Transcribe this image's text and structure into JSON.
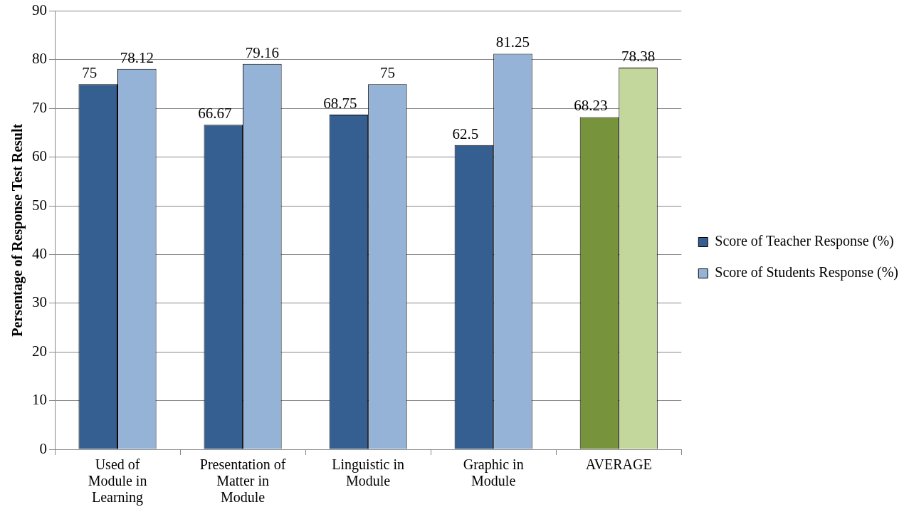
{
  "chart_data": {
    "type": "bar",
    "ylabel": "Persentage of Response Test Result",
    "categories": [
      "Used of Module in Learning",
      "Presentation of Matter in Module",
      "Linguistic in Module",
      "Graphic in Module",
      "AVERAGE"
    ],
    "series": [
      {
        "name": "Score of Teacher Response (%)",
        "color": "#355f91",
        "colors": [
          "#355f91",
          "#355f91",
          "#355f91",
          "#355f91",
          "#77933c"
        ],
        "values": [
          75,
          66.67,
          68.75,
          62.5,
          68.23
        ]
      },
      {
        "name": "Score of Students Response (%)",
        "color": "#95b3d7",
        "colors": [
          "#95b3d7",
          "#95b3d7",
          "#95b3d7",
          "#95b3d7",
          "#c3d69b"
        ],
        "values": [
          78.12,
          79.16,
          75,
          81.25,
          78.38
        ]
      }
    ],
    "ylim": [
      0,
      90
    ],
    "yticks": [
      0,
      10,
      20,
      30,
      40,
      50,
      60,
      70,
      80,
      90
    ],
    "grid": "y",
    "legend": "right",
    "data_labels": true
  }
}
